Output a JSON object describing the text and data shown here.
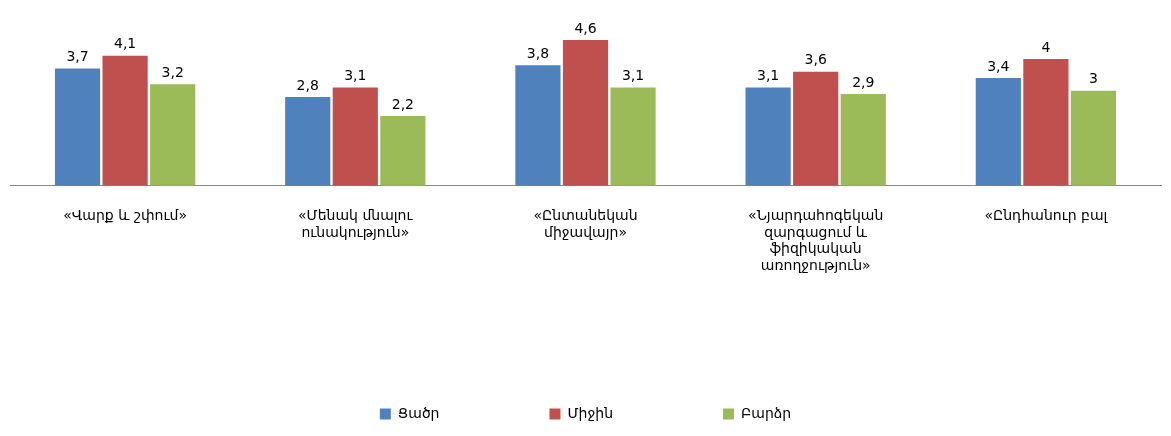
{
  "chart_data": {
    "type": "bar",
    "categories": [
      "«Վարք և շփում»",
      "«Մենակ մնալու ունակություն»",
      "«Ընտանեկան միջավայր»",
      "«Նյարդահոգեկան զարգացում և ֆիզիկական առողջություն»",
      "«Ընդհանուր բալ"
    ],
    "series": [
      {
        "name": "Ցածր",
        "color": "#4f81bd",
        "values": [
          3.7,
          2.8,
          3.8,
          3.1,
          3.4
        ],
        "value_labels": [
          "3,7",
          "2,8",
          "3,8",
          "3,1",
          "3,4"
        ]
      },
      {
        "name": "Միջին",
        "color": "#c0504d",
        "values": [
          4.1,
          3.1,
          4.6,
          3.6,
          4
        ],
        "value_labels": [
          "4,1",
          "3,1",
          "4,6",
          "3,6",
          "4"
        ]
      },
      {
        "name": "Բարձր",
        "color": "#9bbb59",
        "values": [
          3.2,
          2.2,
          3.1,
          2.9,
          3
        ],
        "value_labels": [
          "3,2",
          "2,2",
          "3,1",
          "2,9",
          "3"
        ]
      }
    ],
    "ylim": [
      0,
      4.6
    ],
    "tick_labels": "x",
    "grid": false,
    "legend": "bottom"
  }
}
